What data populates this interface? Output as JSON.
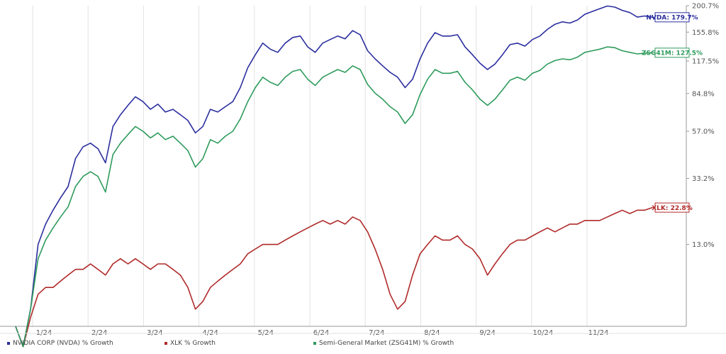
{
  "chart_data": {
    "type": "line",
    "title": "",
    "xlabel": "",
    "ylabel": "",
    "x_ticks": [
      "1/24",
      "2/24",
      "3/24",
      "4/24",
      "5/24",
      "6/24",
      "7/24",
      "8/24",
      "9/24",
      "10/24",
      "11/24"
    ],
    "y_ticks": [
      "13.0%",
      "33.2%",
      "57.0%",
      "84.8%",
      "117.5%",
      "155.8%",
      "200.7%"
    ],
    "y_tick_values": [
      13.0,
      33.2,
      57.0,
      84.8,
      117.5,
      155.8,
      200.7
    ],
    "ylim": [
      0,
      200.7
    ],
    "y_scale": "log",
    "grid": "vertical",
    "legend_position": "bottom",
    "series": [
      {
        "name": "NVIDIA CORP (NVDA) % Growth",
        "color": "#2b2f9e",
        "end_label": "NVDA: 179.7%",
        "values": [
          0,
          -2,
          2,
          13,
          18,
          22,
          26,
          30,
          42,
          48,
          50,
          47,
          40,
          60,
          68,
          75,
          82,
          78,
          72,
          76,
          70,
          72,
          68,
          64,
          56,
          60,
          72,
          70,
          74,
          78,
          90,
          110,
          125,
          140,
          132,
          128,
          140,
          148,
          150,
          135,
          128,
          140,
          145,
          150,
          146,
          158,
          152,
          130,
          120,
          112,
          105,
          100,
          90,
          98,
          120,
          140,
          155,
          150,
          150,
          152,
          135,
          125,
          115,
          108,
          114,
          125,
          138,
          140,
          136,
          145,
          150,
          160,
          168,
          172,
          170,
          175,
          185,
          190,
          195,
          200,
          198,
          192,
          188,
          180,
          182,
          179.7
        ]
      },
      {
        "name": "XLK % Growth",
        "color": "#b02a2a",
        "end_label": "XLK: 22.8%",
        "values": [
          0,
          -2,
          1,
          4,
          5,
          5,
          6,
          7,
          8,
          8,
          9,
          8,
          7,
          9,
          10,
          9,
          10,
          9,
          8,
          9,
          9,
          8,
          7,
          5,
          2,
          3,
          5,
          6,
          7,
          8,
          9,
          11,
          12,
          13,
          13,
          13,
          14,
          15,
          16,
          17,
          18,
          19,
          18,
          19,
          18,
          20,
          19,
          16,
          12,
          8,
          4,
          2,
          3,
          7,
          11,
          13,
          15,
          14,
          14,
          15,
          13,
          12,
          10,
          7,
          9,
          11,
          13,
          14,
          14,
          15,
          16,
          17,
          16,
          17,
          18,
          18,
          19,
          19,
          19,
          20,
          21,
          22,
          21,
          22,
          22,
          22.8
        ]
      },
      {
        "name": "Semi-General Market (ZSG41M) % Growth",
        "color": "#2e9b5c",
        "end_label": "ZSG41M: 127.5%",
        "values": [
          0,
          -2,
          2,
          10,
          14,
          17,
          20,
          23,
          30,
          34,
          36,
          34,
          28,
          44,
          50,
          55,
          60,
          57,
          53,
          56,
          52,
          54,
          50,
          46,
          38,
          42,
          52,
          50,
          54,
          57,
          65,
          78,
          90,
          100,
          95,
          92,
          100,
          106,
          108,
          98,
          92,
          100,
          104,
          108,
          105,
          112,
          108,
          93,
          85,
          80,
          74,
          70,
          62,
          68,
          84,
          98,
          108,
          104,
          104,
          106,
          95,
          88,
          80,
          75,
          80,
          88,
          97,
          100,
          97,
          104,
          107,
          114,
          118,
          120,
          119,
          122,
          128,
          130,
          132,
          135,
          134,
          130,
          128,
          126,
          127,
          127.5
        ]
      }
    ]
  }
}
